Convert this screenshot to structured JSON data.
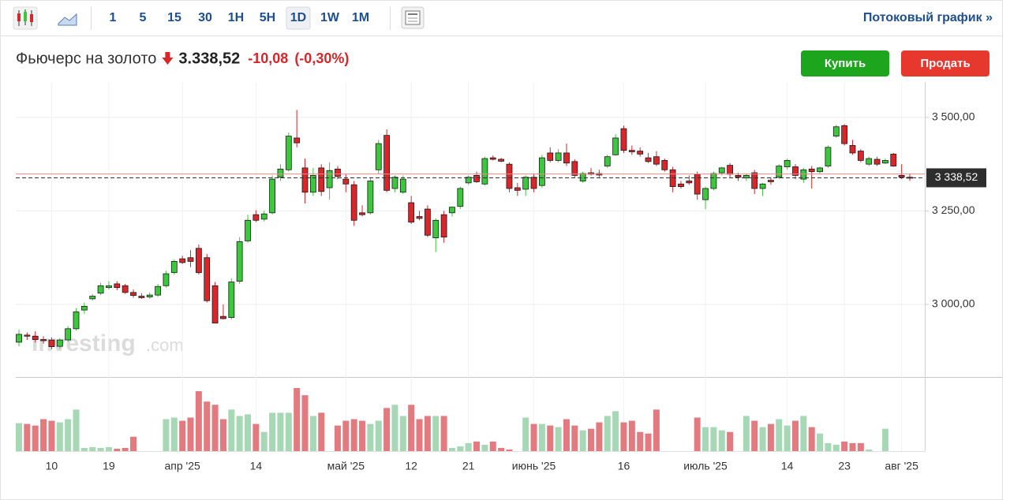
{
  "header": {
    "intervals": [
      "1",
      "5",
      "15",
      "30",
      "1H",
      "5H",
      "1D",
      "1W",
      "1M"
    ],
    "active_interval": 6,
    "stream_link": "Потоковый график »",
    "instrument": "Фьючерс на золото",
    "price": "3.338,52",
    "change": "-10,08",
    "change_pct": "(-0,30%)",
    "buy": "Купить",
    "sell": "Продать",
    "watermark": "Investing",
    "watermark_suffix": ".com"
  },
  "chart_data": {
    "type": "candlestick",
    "categories": [
      null,
      null,
      null,
      null,
      "10",
      null,
      null,
      null,
      null,
      null,
      null,
      "19",
      null,
      null,
      null,
      null,
      null,
      null,
      null,
      null,
      "апр '25",
      null,
      null,
      null,
      null,
      null,
      null,
      null,
      null,
      "14",
      null,
      null,
      null,
      null,
      null,
      null,
      null,
      null,
      null,
      null,
      "май '25",
      null,
      null,
      null,
      null,
      null,
      null,
      null,
      "12",
      null,
      null,
      null,
      null,
      null,
      null,
      "21",
      null,
      null,
      null,
      null,
      null,
      null,
      null,
      "июнь '25",
      null,
      null,
      null,
      null,
      null,
      null,
      null,
      null,
      null,
      null,
      "16",
      null,
      null,
      null,
      null,
      null,
      null,
      null,
      null,
      null,
      "июль '25",
      null,
      null,
      null,
      null,
      null,
      null,
      null,
      null,
      null,
      "14",
      null,
      null,
      null,
      null,
      null,
      null,
      "23",
      null,
      null,
      null,
      null,
      null,
      null,
      "авг '25",
      null
    ],
    "open": [
      2899,
      2918,
      2915,
      2906,
      2905,
      2888,
      2905,
      2935,
      2985,
      3015,
      3030,
      3045,
      3055,
      3050,
      3032,
      3022,
      3020,
      3025,
      3050,
      3085,
      3122,
      3125,
      3150,
      3125,
      3050,
      2968,
      2965,
      3062,
      3170,
      3240,
      3228,
      3245,
      3340,
      3360,
      3445,
      3365,
      3300,
      3365,
      3312,
      3362,
      3335,
      3320,
      3245,
      3245,
      3360,
      3452,
      3310,
      3300,
      3272,
      3235,
      3255,
      3178,
      3240,
      3245,
      3262,
      3325,
      3345,
      3322,
      3392,
      3388,
      3375,
      3312,
      3308,
      3340,
      3318,
      3405,
      3385,
      3405,
      3382,
      3330,
      3352,
      3350,
      3370,
      3400,
      3470,
      3412,
      3410,
      3392,
      3395,
      3385,
      3360,
      3322,
      3330,
      3348,
      3280,
      3310,
      3352,
      3372,
      3345,
      3338,
      3352,
      3310,
      3332,
      3340,
      3368,
      3368,
      3335,
      3362,
      3355,
      3370,
      3450,
      3478,
      3425,
      3410,
      3375,
      3388,
      3378,
      3402,
      3345,
      3340
    ],
    "high": [
      2932,
      2925,
      2928,
      2915,
      2912,
      2910,
      2942,
      2990,
      3005,
      3028,
      3058,
      3062,
      3062,
      3055,
      3040,
      3030,
      3032,
      3055,
      3090,
      3120,
      3130,
      3145,
      3160,
      3135,
      3060,
      3000,
      3070,
      3180,
      3240,
      3252,
      3250,
      3345,
      3375,
      3460,
      3520,
      3390,
      3365,
      3375,
      3380,
      3370,
      3348,
      3330,
      3265,
      3340,
      3440,
      3468,
      3345,
      3345,
      3290,
      3250,
      3265,
      3230,
      3250,
      3262,
      3315,
      3345,
      3355,
      3395,
      3398,
      3392,
      3380,
      3325,
      3345,
      3350,
      3400,
      3420,
      3415,
      3430,
      3388,
      3355,
      3365,
      3360,
      3400,
      3455,
      3478,
      3425,
      3420,
      3405,
      3410,
      3390,
      3368,
      3330,
      3345,
      3355,
      3315,
      3355,
      3368,
      3378,
      3352,
      3350,
      3360,
      3325,
      3340,
      3375,
      3390,
      3375,
      3365,
      3370,
      3368,
      3425,
      3480,
      3482,
      3440,
      3415,
      3395,
      3395,
      3390,
      3405,
      3375,
      3350
    ],
    "low": [
      2888,
      2905,
      2898,
      2895,
      2880,
      2882,
      2900,
      2930,
      2975,
      3010,
      3025,
      3040,
      3038,
      3028,
      3018,
      3015,
      3015,
      3020,
      3045,
      3080,
      3108,
      3100,
      3080,
      3005,
      2950,
      2960,
      2960,
      3055,
      3165,
      3220,
      3222,
      3240,
      3330,
      3355,
      3420,
      3270,
      3290,
      3290,
      3280,
      3335,
      3300,
      3210,
      3235,
      3240,
      3350,
      3300,
      3300,
      3295,
      3215,
      3225,
      3180,
      3140,
      3165,
      3235,
      3255,
      3320,
      3325,
      3318,
      3385,
      3380,
      3300,
      3290,
      3290,
      3300,
      3312,
      3380,
      3380,
      3370,
      3340,
      3325,
      3345,
      3340,
      3365,
      3398,
      3405,
      3400,
      3395,
      3378,
      3370,
      3355,
      3300,
      3310,
      3320,
      3280,
      3255,
      3305,
      3345,
      3340,
      3330,
      3330,
      3295,
      3290,
      3320,
      3335,
      3360,
      3335,
      3325,
      3310,
      3350,
      3365,
      3445,
      3425,
      3400,
      3380,
      3370,
      3370,
      3375,
      3368,
      3335,
      3330
    ],
    "close": [
      2920,
      2915,
      2906,
      2903,
      2887,
      2905,
      2935,
      2980,
      2995,
      3022,
      3050,
      3050,
      3045,
      3032,
      3024,
      3018,
      3025,
      3048,
      3082,
      3115,
      3112,
      3115,
      3085,
      3010,
      2950,
      2962,
      3060,
      3168,
      3225,
      3225,
      3242,
      3335,
      3362,
      3450,
      3432,
      3300,
      3345,
      3302,
      3358,
      3342,
      3322,
      3225,
      3240,
      3330,
      3430,
      3305,
      3340,
      3335,
      3220,
      3230,
      3185,
      3225,
      3180,
      3260,
      3310,
      3340,
      3328,
      3390,
      3388,
      3383,
      3310,
      3305,
      3340,
      3310,
      3392,
      3385,
      3405,
      3378,
      3345,
      3350,
      3348,
      3346,
      3395,
      3445,
      3412,
      3408,
      3402,
      3382,
      3375,
      3360,
      3315,
      3315,
      3325,
      3295,
      3310,
      3350,
      3365,
      3348,
      3340,
      3345,
      3310,
      3322,
      3328,
      3370,
      3385,
      3345,
      3360,
      3355,
      3365,
      3420,
      3475,
      3430,
      3405,
      3385,
      3390,
      3375,
      3385,
      3370,
      3340,
      3338.52
    ],
    "volume": [
      35,
      34,
      32,
      40,
      38,
      36,
      40,
      52,
      4,
      5,
      4,
      5,
      3,
      4,
      18,
      0,
      0,
      0,
      40,
      42,
      38,
      42,
      75,
      62,
      58,
      40,
      52,
      44,
      46,
      34,
      24,
      48,
      48,
      48,
      79,
      70,
      44,
      48,
      0,
      32,
      38,
      40,
      38,
      34,
      38,
      54,
      58,
      44,
      58,
      40,
      44,
      44,
      44,
      4,
      6,
      10,
      12,
      8,
      12,
      4,
      2,
      0,
      42,
      34,
      34,
      32,
      30,
      40,
      32,
      26,
      28,
      36,
      44,
      50,
      36,
      38,
      24,
      22,
      52,
      0,
      0,
      0,
      0,
      42,
      30,
      30,
      26,
      24,
      0,
      44,
      38,
      30,
      34,
      40,
      32,
      38,
      44,
      30,
      22,
      10,
      8,
      12,
      10,
      10,
      2,
      0,
      28,
      0,
      0,
      0
    ],
    "up_color": "#3cc83c",
    "down_color": "#d9262b",
    "volume_up_color": "#a6d8b6",
    "volume_down_color": "#e37a7f",
    "ylim": [
      2806,
      3582
    ],
    "yticks": [
      {
        "value": 3000,
        "label": "3 000,00"
      },
      {
        "value": 3250,
        "label": "3 250,00"
      },
      {
        "value": 3500,
        "label": "3 500,00"
      }
    ],
    "prev_close": 3348.6,
    "last_price": {
      "value": 3338.52,
      "label": "3 338,52"
    },
    "grid": true
  }
}
